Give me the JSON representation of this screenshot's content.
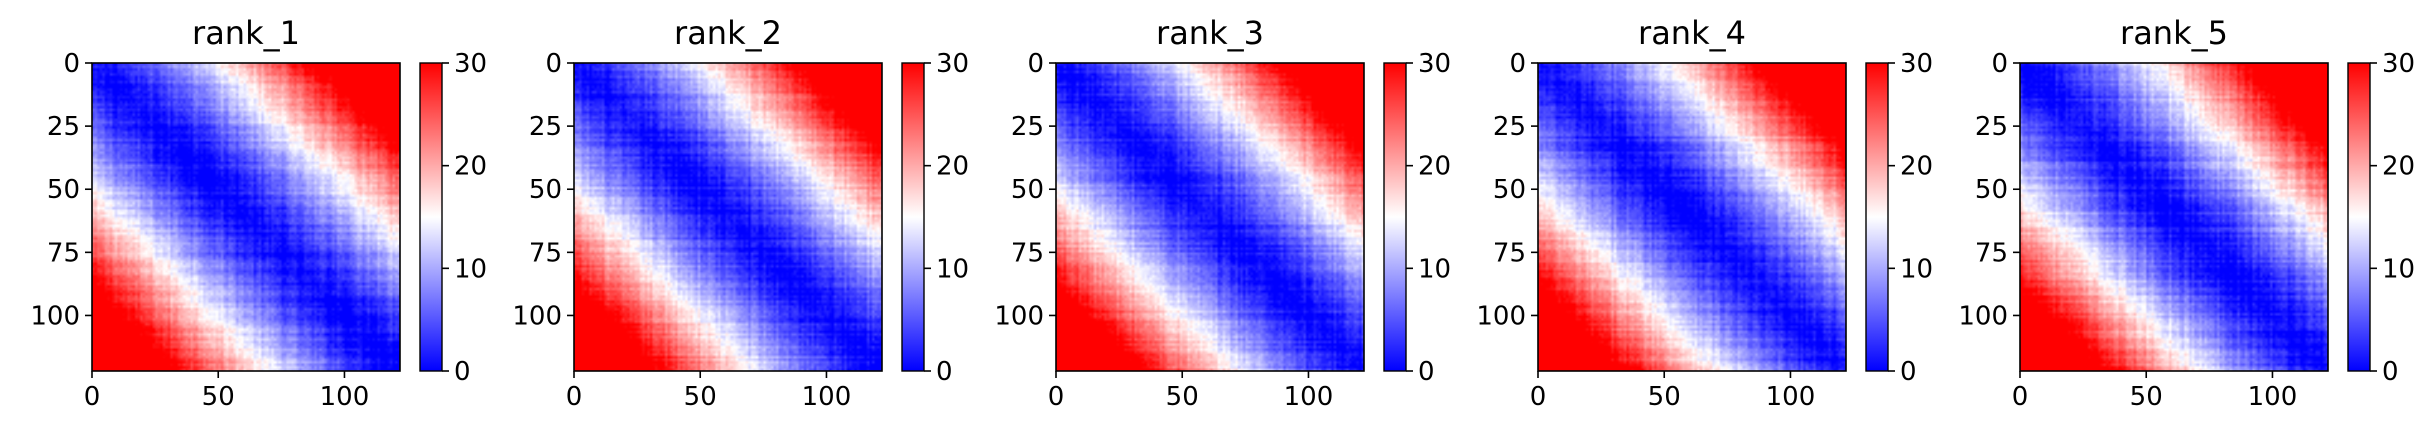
{
  "chart_data": [
    {
      "type": "heatmap",
      "title": "rank_1",
      "xlabel": "",
      "ylabel": "",
      "x_ticks": [
        0,
        50,
        100
      ],
      "y_ticks": [
        0,
        25,
        50,
        75,
        100
      ],
      "xlim": [
        0,
        122
      ],
      "ylim": [
        122,
        0
      ],
      "matrix_size": 122,
      "colorbar": {
        "ticks": [
          0,
          10,
          20,
          30
        ],
        "range": [
          0,
          30
        ],
        "colormap": "bwr"
      },
      "colors": {
        "low": "#0000ff",
        "mid": "#ffffff",
        "high": "#ff0000"
      },
      "pattern": "pairwise distance matrix: near 0 on diagonal, rising to about 30 at far off-diagonal corners"
    },
    {
      "type": "heatmap",
      "title": "rank_2",
      "xlabel": "",
      "ylabel": "",
      "x_ticks": [
        0,
        50,
        100
      ],
      "y_ticks": [
        0,
        25,
        50,
        75,
        100
      ],
      "xlim": [
        0,
        122
      ],
      "ylim": [
        122,
        0
      ],
      "matrix_size": 122,
      "colorbar": {
        "ticks": [
          0,
          10,
          20,
          30
        ],
        "range": [
          0,
          30
        ],
        "colormap": "bwr"
      },
      "colors": {
        "low": "#0000ff",
        "mid": "#ffffff",
        "high": "#ff0000"
      },
      "pattern": "pairwise distance matrix: near 0 on diagonal, rising to about 30 at far off-diagonal corners"
    },
    {
      "type": "heatmap",
      "title": "rank_3",
      "xlabel": "",
      "ylabel": "",
      "x_ticks": [
        0,
        50,
        100
      ],
      "y_ticks": [
        0,
        25,
        50,
        75,
        100
      ],
      "xlim": [
        0,
        122
      ],
      "ylim": [
        122,
        0
      ],
      "matrix_size": 122,
      "colorbar": {
        "ticks": [
          0,
          10,
          20,
          30
        ],
        "range": [
          0,
          30
        ],
        "colormap": "bwr"
      },
      "colors": {
        "low": "#0000ff",
        "mid": "#ffffff",
        "high": "#ff0000"
      },
      "pattern": "pairwise distance matrix: near 0 on diagonal, rising to about 30 at far off-diagonal corners"
    },
    {
      "type": "heatmap",
      "title": "rank_4",
      "xlabel": "",
      "ylabel": "",
      "x_ticks": [
        0,
        50,
        100
      ],
      "y_ticks": [
        0,
        25,
        50,
        75,
        100
      ],
      "xlim": [
        0,
        122
      ],
      "ylim": [
        122,
        0
      ],
      "matrix_size": 122,
      "colorbar": {
        "ticks": [
          0,
          10,
          20,
          30
        ],
        "range": [
          0,
          30
        ],
        "colormap": "bwr"
      },
      "colors": {
        "low": "#0000ff",
        "mid": "#ffffff",
        "high": "#ff0000"
      },
      "pattern": "pairwise distance matrix: near 0 on diagonal, rising to about 30 at far off-diagonal corners"
    },
    {
      "type": "heatmap",
      "title": "rank_5",
      "xlabel": "",
      "ylabel": "",
      "x_ticks": [
        0,
        50,
        100
      ],
      "y_ticks": [
        0,
        25,
        50,
        75,
        100
      ],
      "xlim": [
        0,
        122
      ],
      "ylim": [
        122,
        0
      ],
      "matrix_size": 122,
      "colorbar": {
        "ticks": [
          0,
          10,
          20,
          30
        ],
        "range": [
          0,
          30
        ],
        "colormap": "bwr"
      },
      "colors": {
        "low": "#0000ff",
        "mid": "#ffffff",
        "high": "#ff0000"
      },
      "pattern": "pairwise distance matrix: near 0 on diagonal, rising to about 30 at far off-diagonal corners"
    }
  ]
}
